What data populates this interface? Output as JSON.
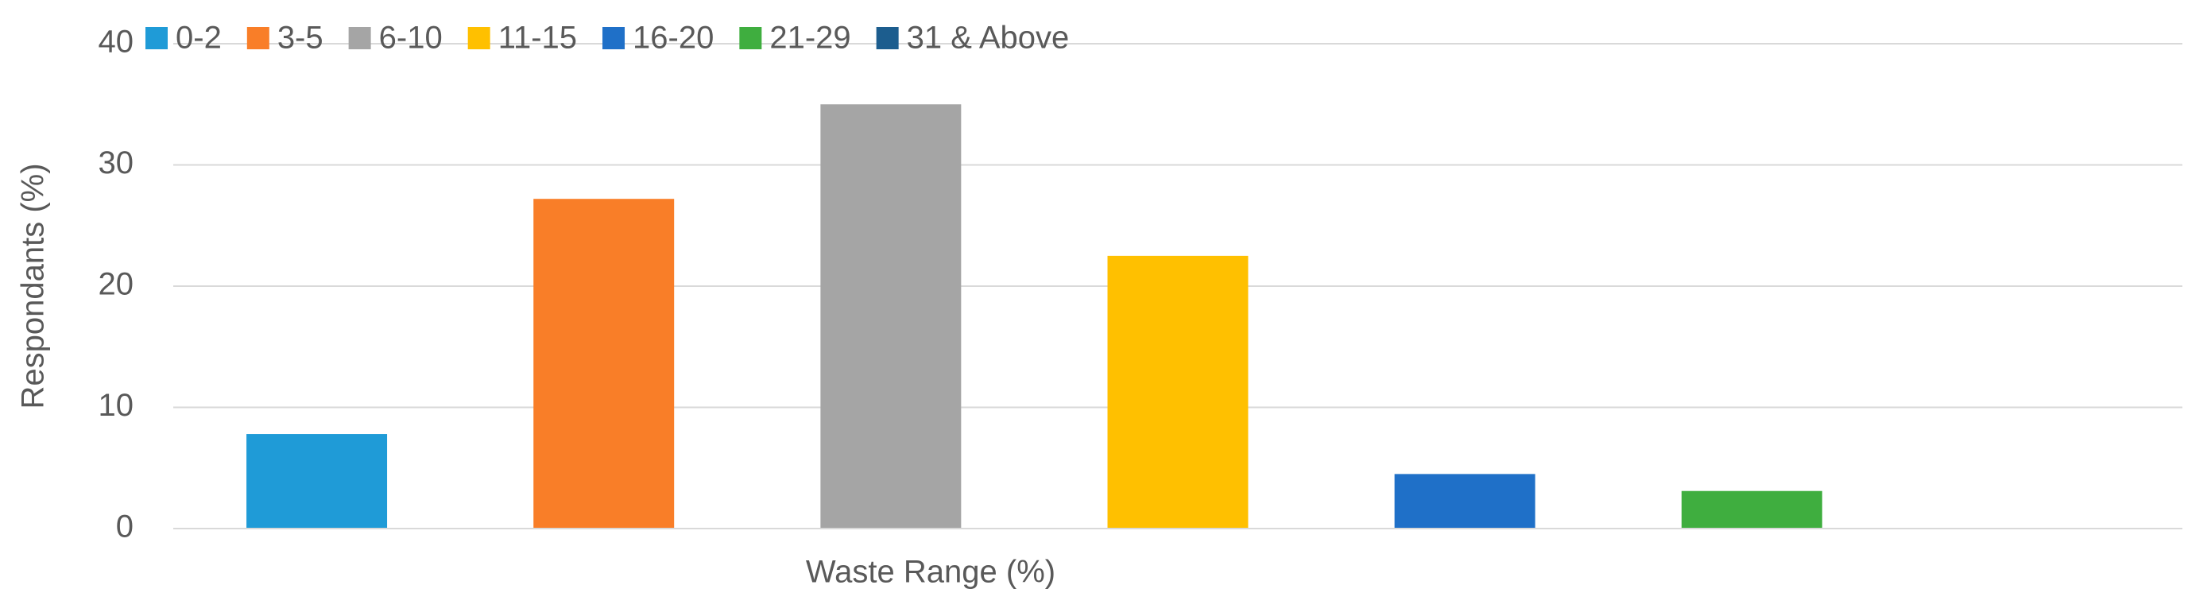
{
  "chart_data": {
    "type": "bar",
    "x_label": "Waste Range (%)",
    "y_label": "Respondants (%)",
    "categories": [
      null
    ],
    "series": [
      {
        "name": "0-2",
        "color": "#1f9bd7",
        "values": [
          7.8
        ]
      },
      {
        "name": "3-5",
        "color": "#f97e28",
        "values": [
          27.2
        ]
      },
      {
        "name": "6-10",
        "color": "#a5a5a5",
        "values": [
          35
        ]
      },
      {
        "name": "11-15",
        "color": "#ffc000",
        "values": [
          22.5
        ]
      },
      {
        "name": "16-20",
        "color": "#1f70c8",
        "values": [
          4.5
        ]
      },
      {
        "name": "21-29",
        "color": "#3fae3f",
        "values": [
          3.1
        ]
      },
      {
        "name": "31 & Above",
        "color": "#1c5d8e",
        "values": [
          0
        ]
      }
    ],
    "ylim": [
      0,
      40
    ],
    "yticks": [
      0,
      10,
      20,
      30,
      40
    ],
    "grid": true,
    "legend": "top"
  }
}
